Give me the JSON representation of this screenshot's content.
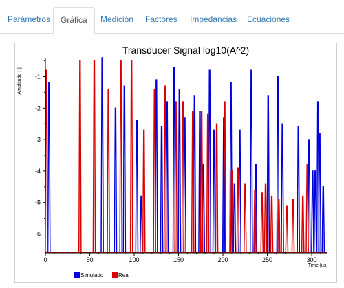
{
  "tabs": [
    {
      "label": "Parámetros",
      "active": false
    },
    {
      "label": "Gráfica",
      "active": true
    },
    {
      "label": "Medición",
      "active": false
    },
    {
      "label": "Factores",
      "active": false
    },
    {
      "label": "Impedancias",
      "active": false
    },
    {
      "label": "Ecuaciones",
      "active": false
    }
  ],
  "chart_data": {
    "type": "bar",
    "title": "Transducer Signal log10(A^2)",
    "xlabel": "Time [us]",
    "ylabel": "Amplitude [-]",
    "xlim": [
      0,
      317
    ],
    "ylim": [
      -6.6,
      -0.4
    ],
    "xticks": [
      0,
      50,
      100,
      150,
      200,
      250,
      300
    ],
    "yticks": [
      -1,
      -2,
      -3,
      -4,
      -5,
      -6
    ],
    "grid": false,
    "legend_position": "bottom-left",
    "series": [
      {
        "name": "Simulado",
        "color": "#0000dd",
        "points": [
          [
            4,
            -1.2
          ],
          [
            64,
            -0.4
          ],
          [
            79,
            -2.0
          ],
          [
            89,
            -1.3
          ],
          [
            103,
            -2.4
          ],
          [
            108,
            -4.8
          ],
          [
            125,
            -1.1
          ],
          [
            131,
            -2.6
          ],
          [
            137,
            -1.8
          ],
          [
            145,
            -0.7
          ],
          [
            151,
            -1.4
          ],
          [
            157,
            -2.3
          ],
          [
            168,
            -1.6
          ],
          [
            174,
            -2.1
          ],
          [
            178,
            -3.8
          ],
          [
            185,
            -0.8
          ],
          [
            190,
            -2.7
          ],
          [
            201,
            -2.3
          ],
          [
            209,
            -1.2
          ],
          [
            213,
            -4.4
          ],
          [
            219,
            -2.7
          ],
          [
            232,
            -0.8
          ],
          [
            237,
            -3.8
          ],
          [
            251,
            -1.6
          ],
          [
            262,
            -1.0
          ],
          [
            267,
            -2.5
          ],
          [
            285,
            -2.6
          ],
          [
            297,
            -3.0
          ],
          [
            301,
            -4.0
          ],
          [
            304,
            -4.0
          ],
          [
            307,
            -1.8
          ],
          [
            309,
            -2.8
          ],
          [
            313,
            -4.5
          ]
        ]
      },
      {
        "name": "Real",
        "color": "#dd0000",
        "points": [
          [
            1,
            -0.8
          ],
          [
            39,
            -0.5
          ],
          [
            55,
            -0.5
          ],
          [
            71,
            -1.4
          ],
          [
            85,
            -0.5
          ],
          [
            97,
            -0.5
          ],
          [
            111,
            -2.7
          ],
          [
            123,
            -1.4
          ],
          [
            135,
            -1.3
          ],
          [
            147,
            -1.8
          ],
          [
            155,
            -1.8
          ],
          [
            166,
            -2.1
          ],
          [
            176,
            -2.1
          ],
          [
            183,
            -2.2
          ],
          [
            193,
            -2.5
          ],
          [
            202,
            -1.8
          ],
          [
            210,
            -4.0
          ],
          [
            217,
            -3.9
          ],
          [
            225,
            -4.4
          ],
          [
            236,
            -4.6
          ],
          [
            244,
            -4.7
          ],
          [
            248,
            -4.4
          ],
          [
            255,
            -4.8
          ],
          [
            263,
            -4.9
          ],
          [
            272,
            -5.1
          ],
          [
            279,
            -4.9
          ],
          [
            290,
            -4.8
          ],
          [
            295,
            -3.8
          ]
        ]
      }
    ]
  }
}
